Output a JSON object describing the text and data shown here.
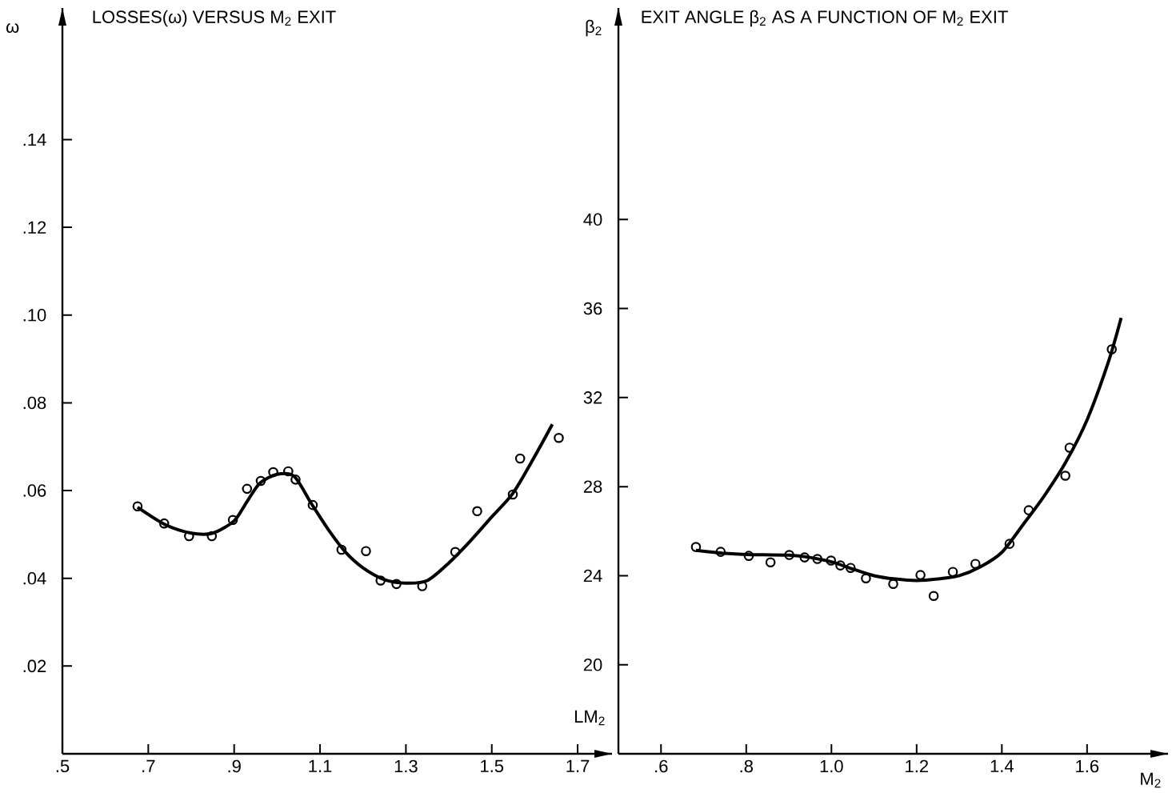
{
  "chart_data": [
    {
      "type": "scatter",
      "title": "LOSSES(ω) VERSUS M$_{2}$ EXIT",
      "xlabel": "LM$_{2}$",
      "ylabel": "ω",
      "xlim": [
        0.5,
        1.78
      ],
      "ylim": [
        0,
        0.17
      ],
      "xticks": [
        {
          "value": 0.5,
          "label": ".5"
        },
        {
          "value": 0.7,
          "label": ".7"
        },
        {
          "value": 0.9,
          "label": ".9"
        },
        1.1,
        1.3,
        1.5,
        1.7
      ],
      "yticks": [
        {
          "value": 0.02,
          "label": ".02"
        },
        {
          "value": 0.04,
          "label": ".04"
        },
        {
          "value": 0.06,
          "label": ".06"
        },
        {
          "value": 0.08,
          "label": ".08"
        },
        {
          "value": 0.1,
          "label": ".10"
        },
        {
          "value": 0.12,
          "label": ".12"
        },
        {
          "value": 0.14,
          "label": ".14"
        }
      ],
      "series": [
        {
          "type": "line",
          "color": "#000000",
          "line_style": "solid",
          "x": [
            0.675,
            0.74,
            0.8,
            0.85,
            0.9,
            0.93,
            0.96,
            1.0,
            1.04,
            1.08,
            1.12,
            1.16,
            1.2,
            1.25,
            1.3,
            1.35,
            1.4,
            1.45,
            1.5,
            1.55,
            1.6,
            1.641
          ],
          "values": [
            0.0562,
            0.0522,
            0.0503,
            0.0503,
            0.0531,
            0.0575,
            0.0617,
            0.0637,
            0.0632,
            0.057,
            0.051,
            0.0459,
            0.0424,
            0.0397,
            0.0389,
            0.0395,
            0.0435,
            0.0485,
            0.054,
            0.0595,
            0.0678,
            0.0751
          ]
        },
        {
          "type": "scatter",
          "color": "#000000",
          "marker": "circle",
          "x": [
            0.675,
            0.737,
            0.795,
            0.848,
            0.897,
            0.93,
            0.962,
            0.991,
            1.026,
            1.043,
            1.083,
            1.15,
            1.207,
            1.241,
            1.278,
            1.338,
            1.415,
            1.466,
            1.549,
            1.566,
            1.656
          ],
          "values": [
            0.0564,
            0.0525,
            0.0496,
            0.0496,
            0.0533,
            0.0604,
            0.0622,
            0.0642,
            0.0644,
            0.0625,
            0.0567,
            0.0465,
            0.0462,
            0.0395,
            0.0387,
            0.0382,
            0.046,
            0.0553,
            0.0591,
            0.0673,
            0.072
          ]
        }
      ]
    },
    {
      "type": "scatter",
      "title": "EXIT ANGLE β$_{2}$ AS A FUNCTION OF M$_{2}$ EXIT",
      "xlabel": "M$_{2}$",
      "ylabel": "β$_{2}$",
      "xlim": [
        0.5,
        1.79
      ],
      "ylim": [
        16,
        49.5
      ],
      "xticks": [
        {
          "value": 0.6,
          "label": ".6"
        },
        {
          "value": 0.8,
          "label": ".8"
        },
        {
          "value": 1.0,
          "label": "1.0"
        },
        1.2,
        1.4,
        1.6
      ],
      "yticks": [
        20,
        24,
        28,
        32,
        36,
        40
      ],
      "series": [
        {
          "type": "line",
          "color": "#000000",
          "line_style": "solid",
          "x": [
            0.682,
            0.75,
            0.8,
            0.9,
            0.95,
            1.0,
            1.05,
            1.1,
            1.15,
            1.2,
            1.25,
            1.3,
            1.35,
            1.4,
            1.45,
            1.5,
            1.55,
            1.6,
            1.65,
            1.68
          ],
          "values": [
            25.14,
            25.0,
            24.95,
            24.92,
            24.82,
            24.62,
            24.3,
            24.0,
            23.85,
            23.78,
            23.85,
            24.0,
            24.4,
            25.05,
            26.3,
            27.6,
            29.1,
            31.0,
            33.6,
            35.58
          ]
        },
        {
          "type": "scatter",
          "color": "#000000",
          "marker": "circle",
          "x": [
            0.682,
            0.74,
            0.806,
            0.857,
            0.901,
            0.937,
            0.967,
            0.999,
            1.021,
            1.045,
            1.081,
            1.145,
            1.209,
            1.24,
            1.285,
            1.338,
            1.418,
            1.463,
            1.549,
            1.559,
            1.658
          ],
          "values": [
            25.29,
            25.07,
            24.89,
            24.6,
            24.93,
            24.82,
            24.75,
            24.68,
            24.46,
            24.35,
            23.88,
            23.63,
            24.03,
            23.09,
            24.17,
            24.53,
            25.43,
            26.94,
            28.49,
            29.75,
            34.17
          ]
        }
      ]
    }
  ]
}
